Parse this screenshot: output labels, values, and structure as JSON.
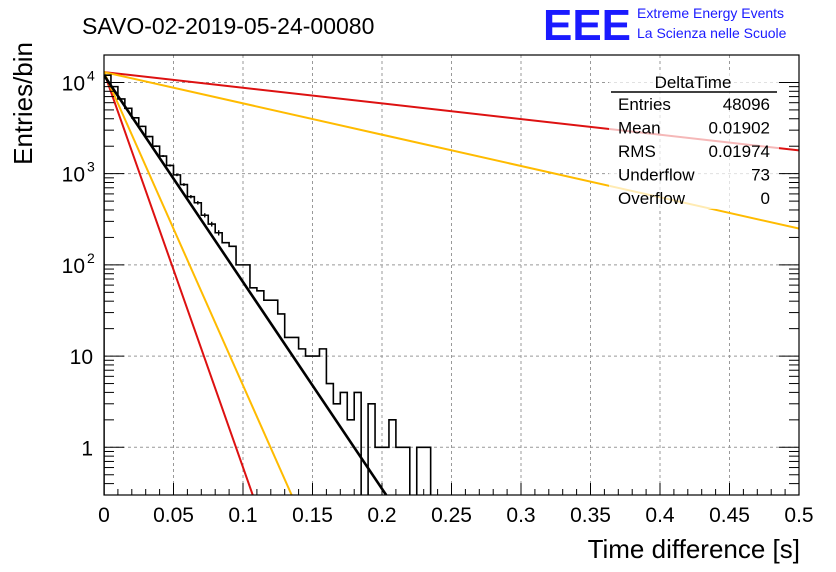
{
  "header": {
    "title": "SAVO-02-2019-05-24-00080",
    "logo_text": "EEE",
    "logo_line1": "Extreme Energy Events",
    "logo_line2": "La Scienza nelle Scuole"
  },
  "stats": {
    "name": "DeltaTime",
    "rows": [
      {
        "label": "Entries",
        "value": "48096"
      },
      {
        "label": "Mean",
        "value": "0.01902"
      },
      {
        "label": "RMS",
        "value": "0.01974"
      },
      {
        "label": "Underflow",
        "value": "73"
      },
      {
        "label": "Overflow",
        "value": "0"
      }
    ]
  },
  "colors": {
    "histogram": "#000000",
    "fit": "#000000",
    "red_line": "#dd1111",
    "orange_line": "#ffbb00",
    "grid": "#999999",
    "logo": "#1a1aff"
  },
  "chart_data": {
    "type": "line",
    "xlabel": "Time difference [s]",
    "ylabel": "Entries/bin",
    "xlim": [
      0,
      0.5
    ],
    "ylim": [
      0.3,
      20000
    ],
    "ylog": true,
    "grid": true,
    "x_ticks": [
      "0",
      "0.05",
      "0.1",
      "0.15",
      "0.2",
      "0.25",
      "0.3",
      "0.35",
      "0.4",
      "0.45",
      "0.5"
    ],
    "y_ticks": [
      {
        "value": 10000,
        "base": "10",
        "exp": "4"
      },
      {
        "value": 1000,
        "base": "10",
        "exp": "3"
      },
      {
        "value": 100,
        "base": "10",
        "exp": "2"
      },
      {
        "value": 10,
        "base": "10",
        "exp": ""
      },
      {
        "value": 1,
        "base": "1",
        "exp": ""
      }
    ],
    "histogram": {
      "bin_width": 0.005,
      "counts": [
        12000,
        9000,
        6600,
        5200,
        4100,
        3300,
        2550,
        2000,
        1560,
        1230,
        970,
        760,
        560,
        480,
        350,
        280,
        225,
        175,
        160,
        100,
        100,
        56,
        52,
        41,
        41,
        29,
        16,
        16,
        12,
        10,
        10,
        12,
        5,
        3,
        4,
        2,
        4,
        0,
        3,
        1,
        1,
        2,
        1,
        1,
        0,
        1,
        1
      ]
    },
    "series": [
      {
        "color": "#dd1111",
        "x": [
          0,
          0.5
        ],
        "y": [
          13000,
          1800
        ]
      },
      {
        "color": "#ffbb00",
        "x": [
          0,
          0.5
        ],
        "y": [
          13000,
          250
        ]
      },
      {
        "color": "#dd1111",
        "x": [
          0,
          0.107
        ],
        "y": [
          13000,
          0.3
        ]
      },
      {
        "color": "#ffbb00",
        "x": [
          0,
          0.135
        ],
        "y": [
          13000,
          0.3
        ]
      },
      {
        "color": "#000000",
        "x": [
          0,
          0.203
        ],
        "y": [
          12000,
          0.3
        ]
      }
    ]
  }
}
